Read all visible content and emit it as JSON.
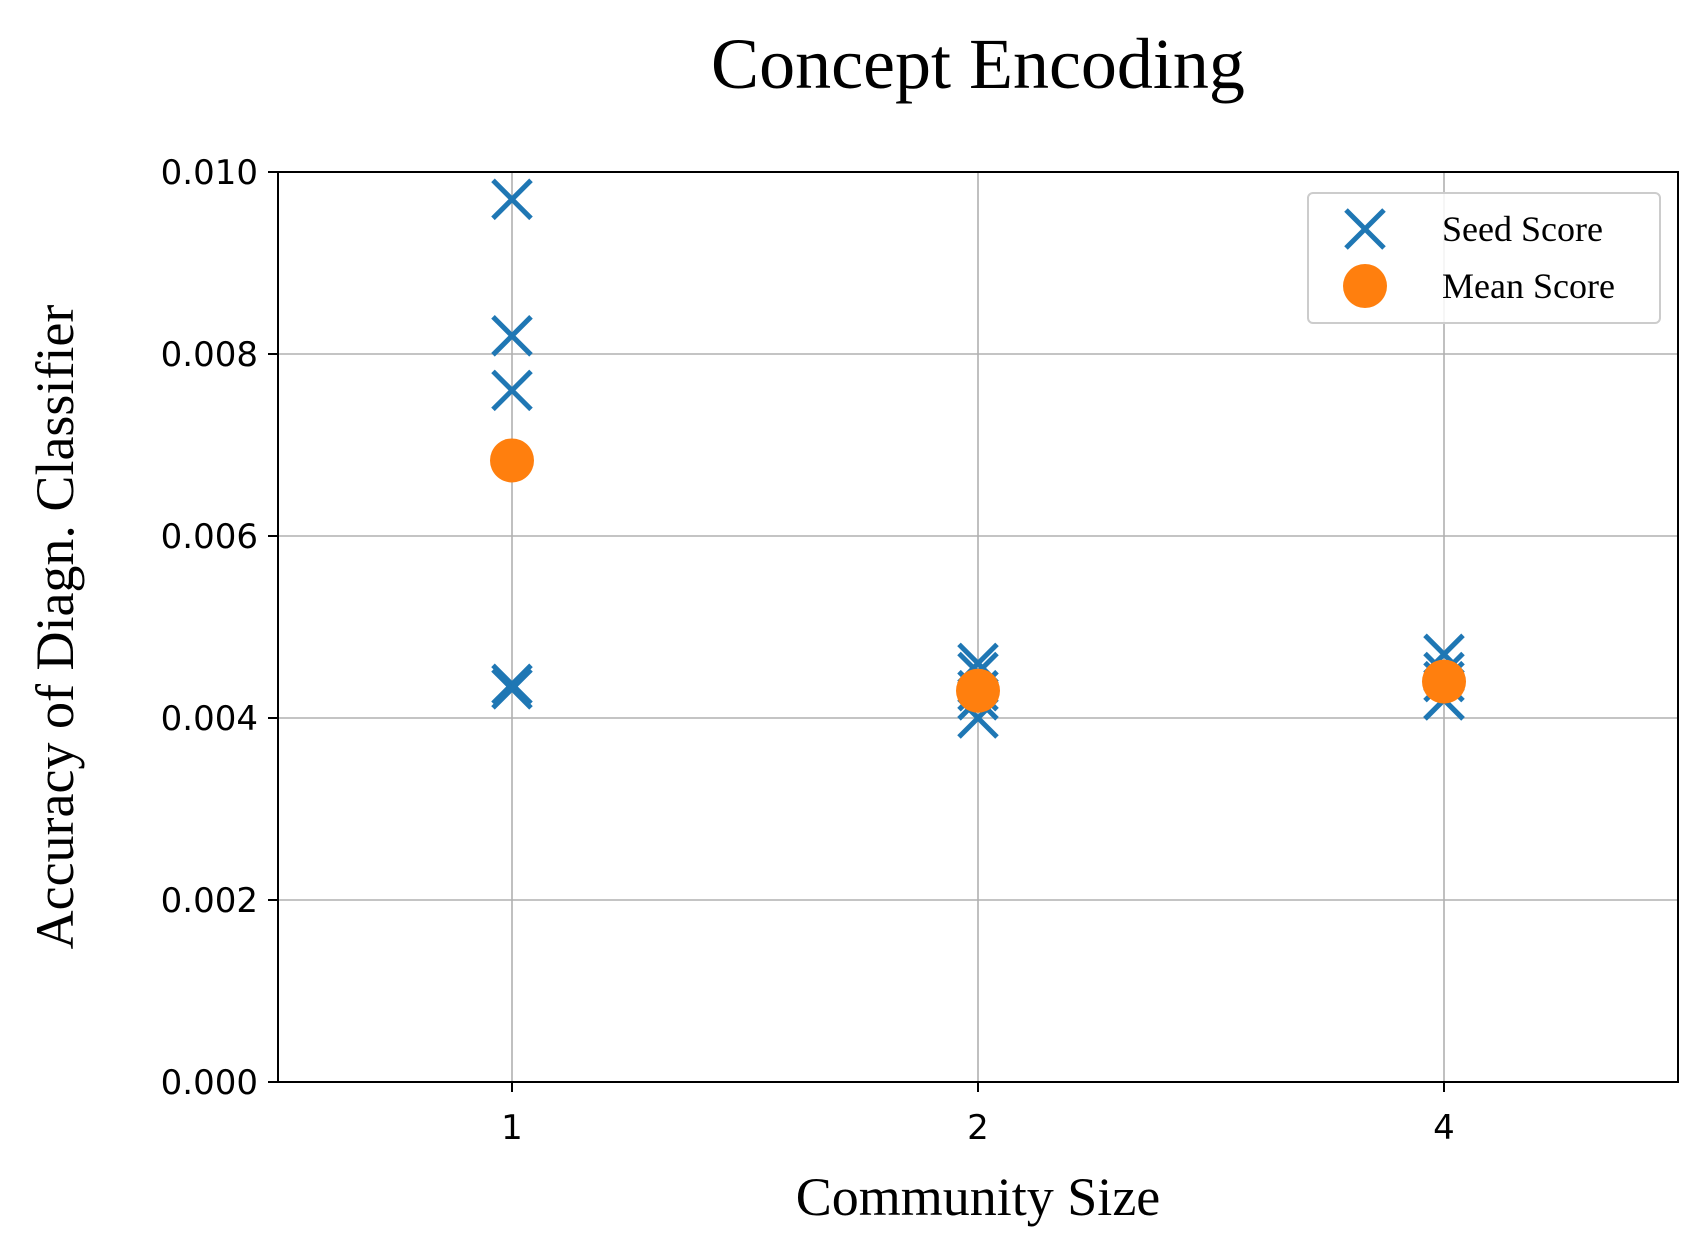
{
  "chart_data": {
    "type": "scatter",
    "title": "Concept Encoding",
    "xlabel": "Community Size",
    "ylabel": "Accuracy of Diagn. Classifier",
    "categories": [
      "1",
      "2",
      "4"
    ],
    "yticks": [
      "0.000",
      "0.002",
      "0.004",
      "0.006",
      "0.008",
      "0.010"
    ],
    "ytick_values": [
      0,
      0.002,
      0.004,
      0.006,
      0.008,
      0.01
    ],
    "ylim": [
      0,
      0.01
    ],
    "grid": true,
    "legend_position": "top-right",
    "series": [
      {
        "name": "Seed Score",
        "marker": "x",
        "color": "#1f77b4",
        "points": [
          {
            "x": "1",
            "y": 0.0097
          },
          {
            "x": "1",
            "y": 0.0082
          },
          {
            "x": "1",
            "y": 0.0076
          },
          {
            "x": "1",
            "y": 0.00437
          },
          {
            "x": "1",
            "y": 0.00432
          },
          {
            "x": "2",
            "y": 0.0046
          },
          {
            "x": "2",
            "y": 0.0045
          },
          {
            "x": "2",
            "y": 0.0043
          },
          {
            "x": "2",
            "y": 0.0042
          },
          {
            "x": "2",
            "y": 0.004
          },
          {
            "x": "4",
            "y": 0.0047
          },
          {
            "x": "4",
            "y": 0.0045
          },
          {
            "x": "4",
            "y": 0.0044
          },
          {
            "x": "4",
            "y": 0.0042
          },
          {
            "x": "4",
            "y": 0.0042
          }
        ]
      },
      {
        "name": "Mean Score",
        "marker": "circle",
        "color": "#ff7f0e",
        "points": [
          {
            "x": "1",
            "y": 0.00683
          },
          {
            "x": "2",
            "y": 0.0043
          },
          {
            "x": "4",
            "y": 0.0044
          }
        ]
      }
    ]
  }
}
